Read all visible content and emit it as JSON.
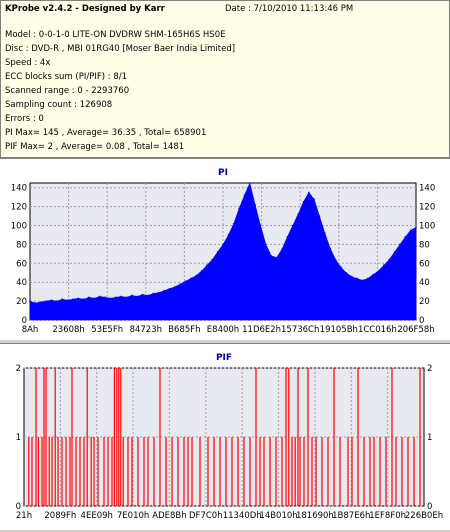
{
  "header": {
    "title": "KProbe v2.4.2 - Designed by Karr",
    "date": "Date : 7/10/2010 11:13:46 PM",
    "lines": [
      "Model : 0-0-1-0 LITE-ON DVDRW SHM-165H6S HS0E",
      "Disc : DVD-R , MBI 01RG40 [Moser Baer India Limited]",
      "Speed : 4x",
      "ECC blocks sum (PI/PIF) : 8/1",
      "Scanned range : 0 - 2293760",
      "Sampling count : 126908",
      "Errors : 0",
      "PI Max= 145 , Average= 36.35 , Total= 658901",
      "PIF Max= 2 , Average= 0.08 , Total= 1481"
    ]
  },
  "colors": {
    "pi_fill": "#0000ff",
    "pif_bar": "#ff0000",
    "plot_bg": "#e8e8f0",
    "grid": "#a0a0a0"
  },
  "chart_data": [
    {
      "type": "area",
      "title": "PI",
      "ylim": [
        0,
        145
      ],
      "yticks": [
        0,
        20,
        40,
        60,
        80,
        100,
        120,
        140
      ],
      "xticks": [
        "8Ah",
        "23608h",
        "53E5Fh",
        "84723h",
        "B685Fh",
        "E8400h",
        "11D6E2h",
        "15736Ch",
        "19105Bh",
        "1CC016h",
        "206F58h"
      ],
      "grid": true,
      "series": [
        {
          "values": [
            20,
            18,
            19,
            20,
            21,
            20,
            22,
            21,
            22,
            23,
            22,
            24,
            23,
            25,
            24,
            23,
            24,
            25,
            24,
            26,
            25,
            27,
            26,
            28,
            29,
            31,
            33,
            35,
            38,
            41,
            44,
            47,
            52,
            58,
            64,
            72,
            80,
            90,
            102,
            118,
            132,
            145,
            122,
            100,
            80,
            68,
            66,
            75,
            88,
            100,
            112,
            125,
            135,
            128,
            110,
            92,
            76,
            64,
            56,
            50,
            46,
            44,
            42,
            44,
            48,
            52,
            58,
            64,
            72,
            80,
            88,
            95,
            98
          ]
        }
      ]
    },
    {
      "type": "bar",
      "title": "PIF",
      "ylim": [
        0,
        2
      ],
      "yticks": [
        0,
        1,
        2
      ],
      "xticks": [
        "21h",
        "2089Fh",
        "4EE09h",
        "7E010h",
        "ADE8Bh",
        "DF7C0h",
        "11340Dh",
        "14B010h",
        "181690h",
        "1B87E6h",
        "1EF8F0h",
        "226B0Eh"
      ],
      "grid": true,
      "series": [
        {
          "points": [
            [
              0.012,
              1
            ],
            [
              0.02,
              1
            ],
            [
              0.03,
              2
            ],
            [
              0.036,
              1
            ],
            [
              0.045,
              1
            ],
            [
              0.05,
              2
            ],
            [
              0.055,
              2
            ],
            [
              0.063,
              1
            ],
            [
              0.07,
              1
            ],
            [
              0.078,
              2
            ],
            [
              0.085,
              1
            ],
            [
              0.095,
              1
            ],
            [
              0.105,
              1
            ],
            [
              0.115,
              1
            ],
            [
              0.12,
              2
            ],
            [
              0.13,
              1
            ],
            [
              0.14,
              1
            ],
            [
              0.15,
              1
            ],
            [
              0.158,
              2
            ],
            [
              0.168,
              1
            ],
            [
              0.175,
              1
            ],
            [
              0.185,
              1
            ],
            [
              0.2,
              1
            ],
            [
              0.21,
              1
            ],
            [
              0.22,
              1
            ],
            [
              0.226,
              2
            ],
            [
              0.232,
              2
            ],
            [
              0.237,
              2
            ],
            [
              0.242,
              2
            ],
            [
              0.248,
              1
            ],
            [
              0.26,
              1
            ],
            [
              0.27,
              1
            ],
            [
              0.285,
              1
            ],
            [
              0.3,
              1
            ],
            [
              0.31,
              1
            ],
            [
              0.325,
              1
            ],
            [
              0.34,
              2
            ],
            [
              0.355,
              1
            ],
            [
              0.37,
              1
            ],
            [
              0.385,
              1
            ],
            [
              0.4,
              1
            ],
            [
              0.41,
              1
            ],
            [
              0.42,
              1
            ],
            [
              0.44,
              1
            ],
            [
              0.46,
              1
            ],
            [
              0.475,
              1
            ],
            [
              0.49,
              1
            ],
            [
              0.505,
              1
            ],
            [
              0.52,
              1
            ],
            [
              0.535,
              1
            ],
            [
              0.55,
              1
            ],
            [
              0.565,
              1
            ],
            [
              0.58,
              2
            ],
            [
              0.59,
              1
            ],
            [
              0.6,
              1
            ],
            [
              0.615,
              1
            ],
            [
              0.63,
              1
            ],
            [
              0.645,
              1
            ],
            [
              0.655,
              2
            ],
            [
              0.662,
              2
            ],
            [
              0.67,
              1
            ],
            [
              0.678,
              1
            ],
            [
              0.685,
              2
            ],
            [
              0.69,
              1
            ],
            [
              0.7,
              1
            ],
            [
              0.71,
              2
            ],
            [
              0.72,
              1
            ],
            [
              0.73,
              1
            ],
            [
              0.745,
              1
            ],
            [
              0.76,
              1
            ],
            [
              0.775,
              2
            ],
            [
              0.79,
              1
            ],
            [
              0.81,
              1
            ],
            [
              0.82,
              1
            ],
            [
              0.835,
              2
            ],
            [
              0.85,
              1
            ],
            [
              0.865,
              1
            ],
            [
              0.875,
              1
            ],
            [
              0.89,
              1
            ],
            [
              0.905,
              1
            ],
            [
              0.92,
              2
            ],
            [
              0.93,
              1
            ],
            [
              0.945,
              1
            ],
            [
              0.96,
              1
            ],
            [
              0.975,
              1
            ],
            [
              0.99,
              2
            ]
          ]
        }
      ]
    }
  ]
}
